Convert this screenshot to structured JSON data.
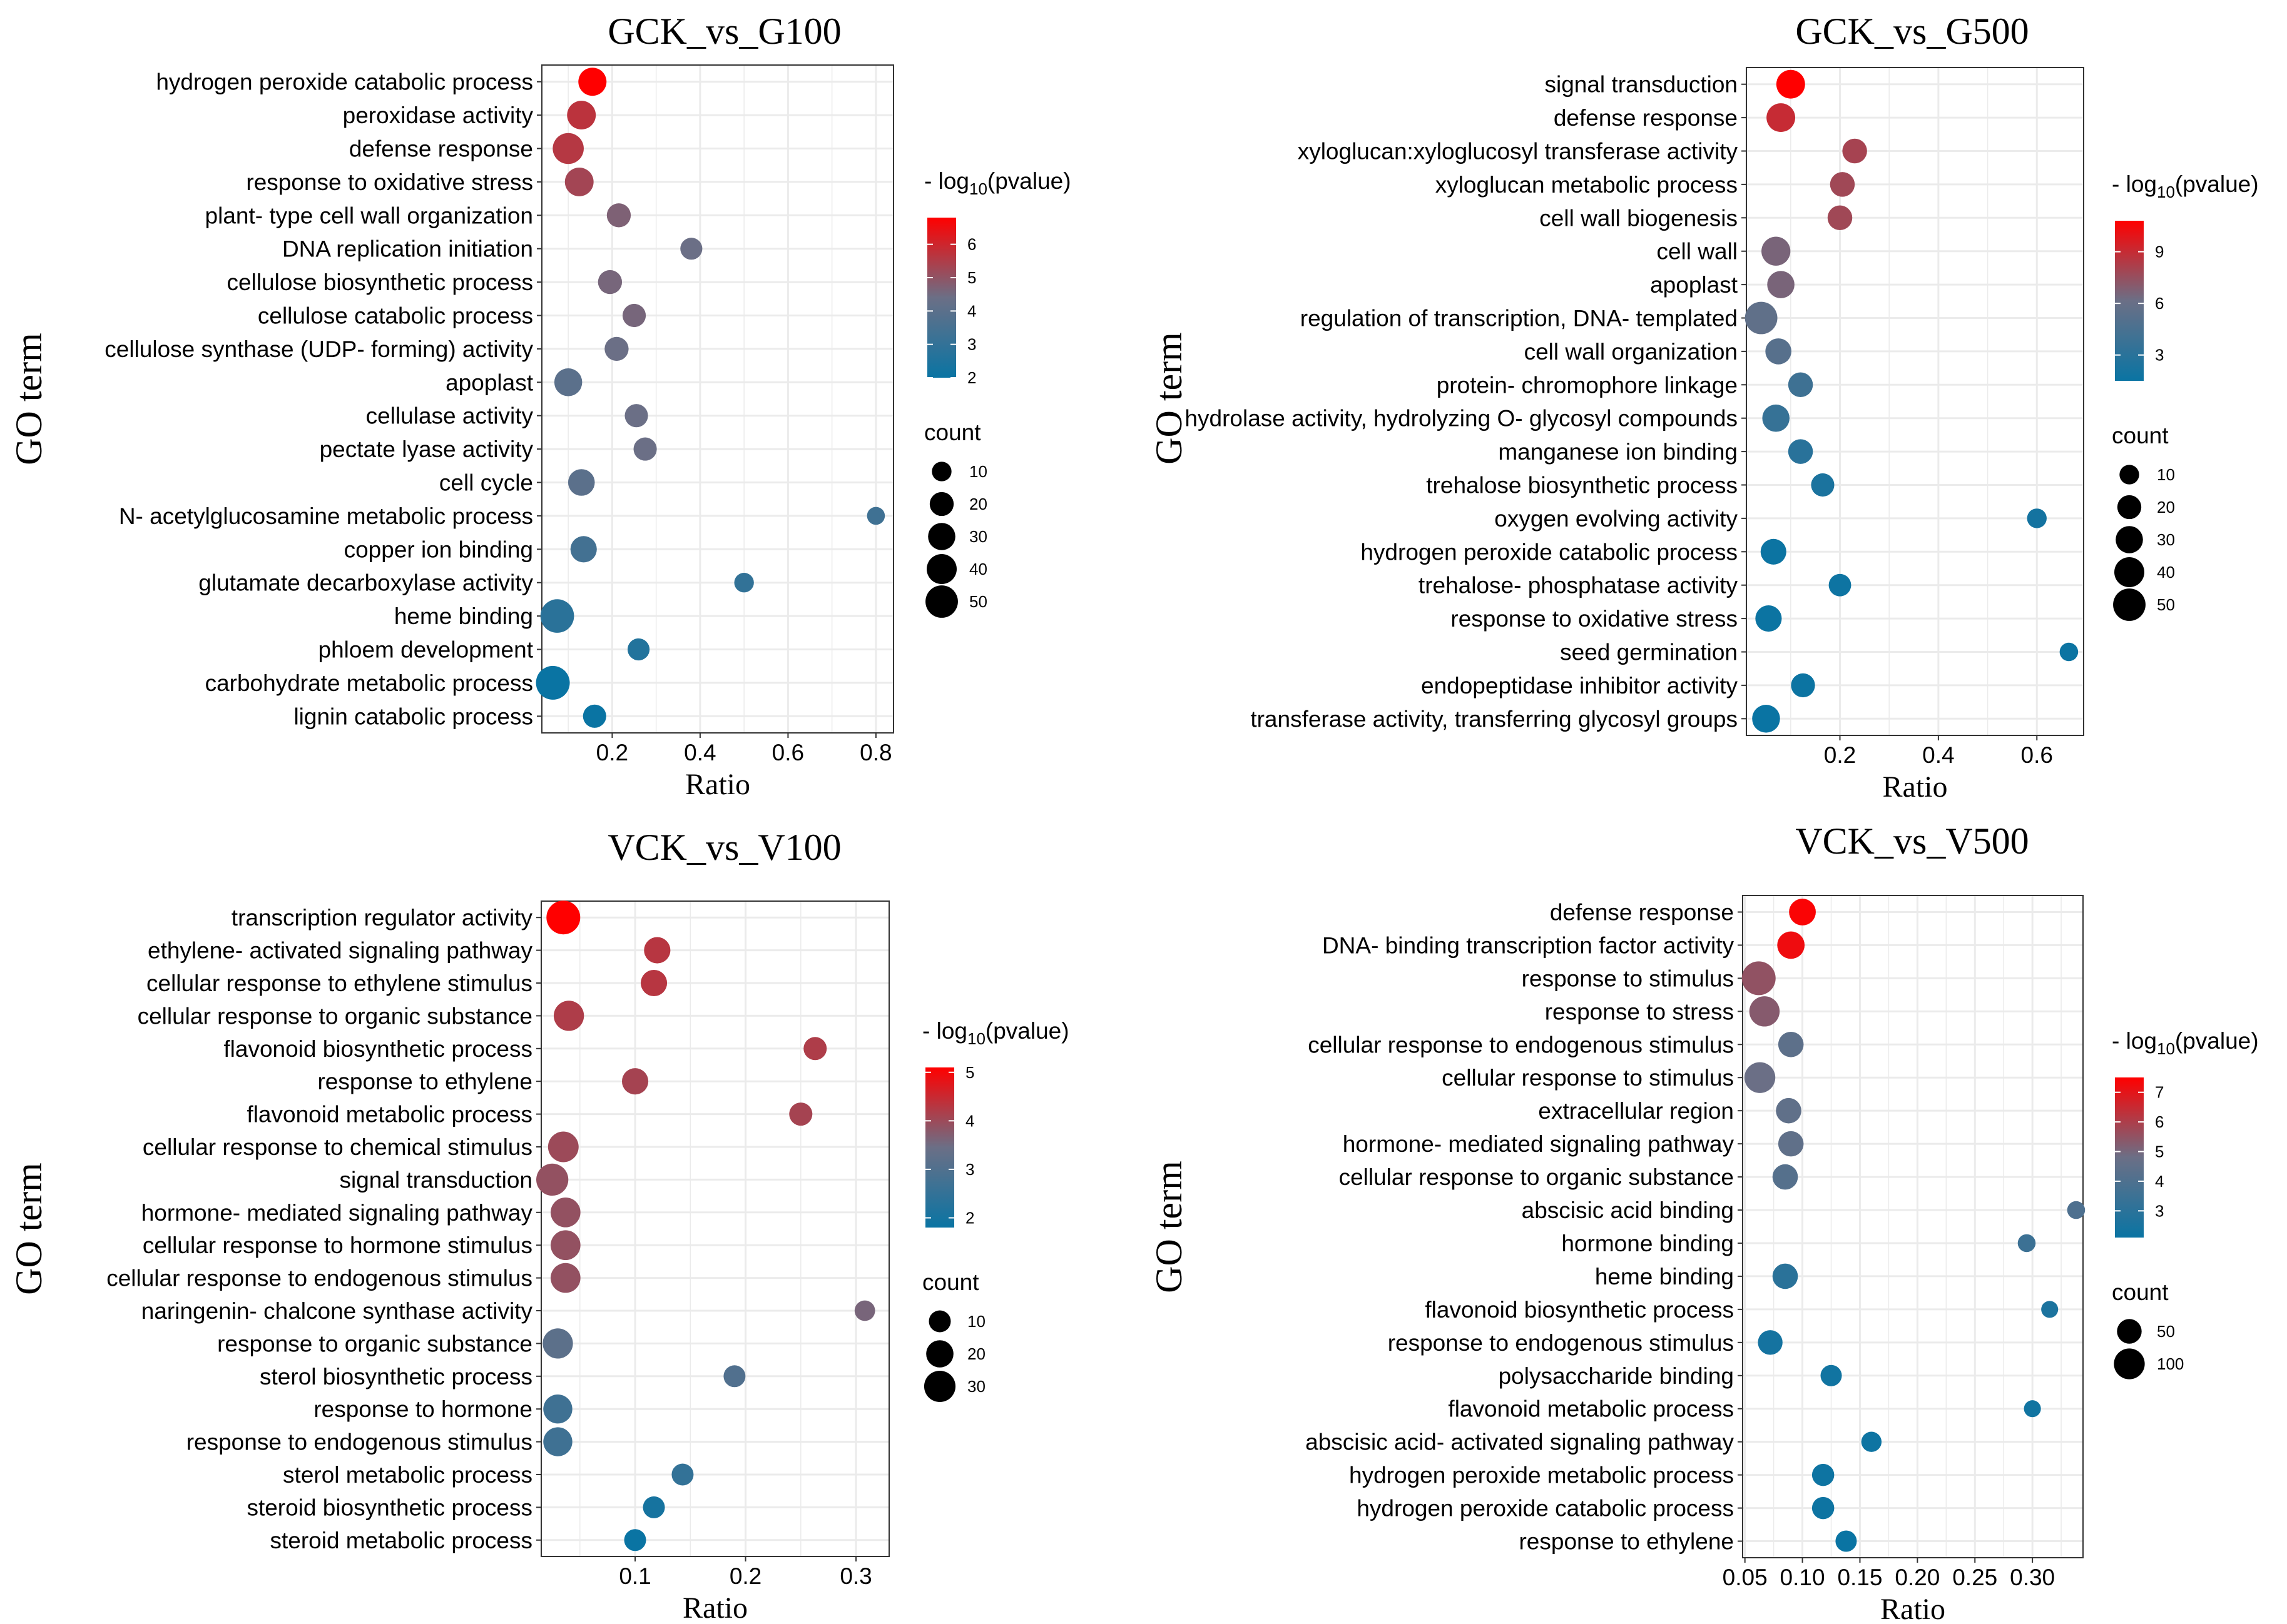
{
  "colors": {
    "high": "#ff0000",
    "low": "#0a74a3",
    "mid": "#6b6f86",
    "grid": "#ebebeb",
    "panel_border": "#333333",
    "text": "#000000"
  },
  "legend_labels": {
    "pvalue_prefix": "- log",
    "pvalue_sub": "10",
    "pvalue_suffix": "(pvalue)",
    "count": "count"
  },
  "chart_data": [
    {
      "type": "scatter",
      "title": "GCK_vs_G100",
      "xlabel": "Ratio",
      "ylabel": "GO term",
      "xlim": [
        0.04,
        0.84
      ],
      "xticks": [
        0.2,
        0.4,
        0.6,
        0.8
      ],
      "xtick_labels": [
        "0.2",
        "0.4",
        "0.6",
        "0.8"
      ],
      "color_range": [
        2,
        6.8
      ],
      "color_ticks": [
        2,
        3,
        4,
        5,
        6
      ],
      "count_range": [
        1,
        56
      ],
      "count_ticks": [
        10,
        20,
        30,
        40,
        50
      ],
      "points": [
        {
          "term": "hydrogen peroxide catabolic process",
          "ratio": 0.155,
          "logp": 6.8,
          "count": 33
        },
        {
          "term": "peroxidase activity",
          "ratio": 0.13,
          "logp": 5.7,
          "count": 35
        },
        {
          "term": "defense response",
          "ratio": 0.1,
          "logp": 5.6,
          "count": 44
        },
        {
          "term": "response to oxidative stress",
          "ratio": 0.125,
          "logp": 5.3,
          "count": 35
        },
        {
          "term": "plant- type cell wall organization",
          "ratio": 0.215,
          "logp": 4.7,
          "count": 20
        },
        {
          "term": "DNA replication initiation",
          "ratio": 0.38,
          "logp": 4.4,
          "count": 15
        },
        {
          "term": "cellulose biosynthetic process",
          "ratio": 0.195,
          "logp": 4.6,
          "count": 20
        },
        {
          "term": "cellulose catabolic process",
          "ratio": 0.25,
          "logp": 4.6,
          "count": 18
        },
        {
          "term": "cellulose synthase (UDP- forming) activity",
          "ratio": 0.21,
          "logp": 4.4,
          "count": 20
        },
        {
          "term": "apoplast",
          "ratio": 0.1,
          "logp": 4.0,
          "count": 32
        },
        {
          "term": "cellulase activity",
          "ratio": 0.255,
          "logp": 4.4,
          "count": 18
        },
        {
          "term": "pectate lyase activity",
          "ratio": 0.275,
          "logp": 4.4,
          "count": 18
        },
        {
          "term": "cell cycle",
          "ratio": 0.13,
          "logp": 4.0,
          "count": 28
        },
        {
          "term": "N- acetylglucosamine metabolic process",
          "ratio": 0.8,
          "logp": 3.3,
          "count": 7
        },
        {
          "term": "copper ion binding",
          "ratio": 0.135,
          "logp": 3.4,
          "count": 27
        },
        {
          "term": "glutamate decarboxylase activity",
          "ratio": 0.5,
          "logp": 3.0,
          "count": 10
        },
        {
          "term": "heme binding",
          "ratio": 0.075,
          "logp": 2.8,
          "count": 55
        },
        {
          "term": "phloem development",
          "ratio": 0.26,
          "logp": 2.6,
          "count": 15
        },
        {
          "term": "carbohydrate metabolic process",
          "ratio": 0.065,
          "logp": 2.0,
          "count": 56
        },
        {
          "term": "lignin catabolic process",
          "ratio": 0.16,
          "logp": 2.0,
          "count": 18
        }
      ]
    },
    {
      "type": "scatter",
      "title": "GCK_vs_G500",
      "xlabel": "Ratio",
      "ylabel": "GO term",
      "xlim": [
        0.01,
        0.695
      ],
      "xticks": [
        0.2,
        0.4,
        0.6
      ],
      "xtick_labels": [
        "0.2",
        "0.4",
        "0.6"
      ],
      "color_range": [
        1.5,
        10.8
      ],
      "color_ticks": [
        3,
        6,
        9
      ],
      "count_range": [
        1,
        56
      ],
      "count_ticks": [
        10,
        20,
        30,
        40,
        50
      ],
      "points": [
        {
          "term": "signal transduction",
          "ratio": 0.1,
          "logp": 10.8,
          "count": 35
        },
        {
          "term": "defense response",
          "ratio": 0.08,
          "logp": 9.0,
          "count": 35
        },
        {
          "term": "xyloglucan:xyloglucosyl transferase activity",
          "ratio": 0.23,
          "logp": 8.0,
          "count": 22
        },
        {
          "term": "xyloglucan metabolic process",
          "ratio": 0.205,
          "logp": 7.8,
          "count": 22
        },
        {
          "term": "cell wall biogenesis",
          "ratio": 0.2,
          "logp": 7.8,
          "count": 22
        },
        {
          "term": "cell wall",
          "ratio": 0.07,
          "logp": 6.6,
          "count": 36
        },
        {
          "term": "apoplast",
          "ratio": 0.08,
          "logp": 6.6,
          "count": 30
        },
        {
          "term": "regulation of transcription, DNA- templated",
          "ratio": 0.04,
          "logp": 5.6,
          "count": 50
        },
        {
          "term": "cell wall organization",
          "ratio": 0.075,
          "logp": 5.2,
          "count": 26
        },
        {
          "term": "protein- chromophore linkage",
          "ratio": 0.12,
          "logp": 4.0,
          "count": 22
        },
        {
          "term": "hydrolase activity, hydrolyzing O- glycosyl compounds",
          "ratio": 0.07,
          "logp": 3.6,
          "count": 30
        },
        {
          "term": "manganese ion binding",
          "ratio": 0.12,
          "logp": 3.0,
          "count": 22
        },
        {
          "term": "trehalose biosynthetic process",
          "ratio": 0.165,
          "logp": 2.3,
          "count": 18
        },
        {
          "term": "oxygen evolving activity",
          "ratio": 0.6,
          "logp": 2.0,
          "count": 10
        },
        {
          "term": "hydrogen peroxide catabolic process",
          "ratio": 0.065,
          "logp": 1.6,
          "count": 25
        },
        {
          "term": "trehalose- phosphatase activity",
          "ratio": 0.2,
          "logp": 1.7,
          "count": 16
        },
        {
          "term": "response to oxidative stress",
          "ratio": 0.055,
          "logp": 1.6,
          "count": 27
        },
        {
          "term": "seed germination",
          "ratio": 0.665,
          "logp": 1.6,
          "count": 8
        },
        {
          "term": "endopeptidase inhibitor activity",
          "ratio": 0.125,
          "logp": 1.6,
          "count": 20
        },
        {
          "term": "transferase activity, transferring glycosyl groups",
          "ratio": 0.05,
          "logp": 1.5,
          "count": 32
        }
      ]
    },
    {
      "type": "scatter",
      "title": "VCK_vs_V100",
      "xlabel": "Ratio",
      "ylabel": "GO term",
      "xlim": [
        0.015,
        0.33
      ],
      "xticks": [
        0.1,
        0.2,
        0.3
      ],
      "xtick_labels": [
        "0.1",
        "0.2",
        "0.3"
      ],
      "color_range": [
        1.8,
        5.1
      ],
      "color_ticks": [
        2,
        3,
        4,
        5
      ],
      "count_range": [
        1,
        37
      ],
      "count_ticks": [
        10,
        20,
        30
      ],
      "points": [
        {
          "term": "transcription regulator activity",
          "ratio": 0.035,
          "logp": 5.1,
          "count": 37
        },
        {
          "term": "ethylene- activated signaling pathway",
          "ratio": 0.12,
          "logp": 4.3,
          "count": 18
        },
        {
          "term": "cellular response to ethylene stimulus",
          "ratio": 0.117,
          "logp": 4.3,
          "count": 18
        },
        {
          "term": "cellular response to organic substance",
          "ratio": 0.04,
          "logp": 4.2,
          "count": 27
        },
        {
          "term": "flavonoid biosynthetic process",
          "ratio": 0.263,
          "logp": 4.2,
          "count": 12
        },
        {
          "term": "response to ethylene",
          "ratio": 0.1,
          "logp": 4.1,
          "count": 18
        },
        {
          "term": "flavonoid metabolic process",
          "ratio": 0.25,
          "logp": 4.1,
          "count": 12
        },
        {
          "term": "cellular response to chemical stimulus",
          "ratio": 0.035,
          "logp": 4.0,
          "count": 28
        },
        {
          "term": "signal transduction",
          "ratio": 0.025,
          "logp": 3.9,
          "count": 32
        },
        {
          "term": "hormone- mediated signaling pathway",
          "ratio": 0.037,
          "logp": 3.9,
          "count": 26
        },
        {
          "term": "cellular response to hormone stimulus",
          "ratio": 0.037,
          "logp": 3.9,
          "count": 26
        },
        {
          "term": "cellular response to endogenous stimulus",
          "ratio": 0.037,
          "logp": 3.9,
          "count": 26
        },
        {
          "term": "naringenin- chalcone synthase activity",
          "ratio": 0.308,
          "logp": 3.6,
          "count": 8
        },
        {
          "term": "response to organic substance",
          "ratio": 0.03,
          "logp": 3.2,
          "count": 27
        },
        {
          "term": "sterol biosynthetic process",
          "ratio": 0.19,
          "logp": 3.0,
          "count": 10
        },
        {
          "term": "response to hormone",
          "ratio": 0.03,
          "logp": 2.7,
          "count": 24
        },
        {
          "term": "response to endogenous stimulus",
          "ratio": 0.03,
          "logp": 2.7,
          "count": 24
        },
        {
          "term": "sterol metabolic process",
          "ratio": 0.143,
          "logp": 2.5,
          "count": 10
        },
        {
          "term": "steroid biosynthetic process",
          "ratio": 0.117,
          "logp": 2.0,
          "count": 10
        },
        {
          "term": "steroid metabolic process",
          "ratio": 0.1,
          "logp": 1.8,
          "count": 10
        }
      ]
    },
    {
      "type": "scatter",
      "title": "VCK_vs_V500",
      "xlabel": "Ratio",
      "ylabel": "GO term",
      "xlim": [
        0.048,
        0.344
      ],
      "xticks": [
        0.05,
        0.1,
        0.15,
        0.2,
        0.25,
        0.3
      ],
      "xtick_labels": [
        "0.05",
        "0.10",
        "0.15",
        "0.20",
        "0.25",
        "0.30"
      ],
      "color_range": [
        2.1,
        7.5
      ],
      "color_ticks": [
        3,
        4,
        5,
        6,
        7
      ],
      "count_range": [
        1,
        130
      ],
      "count_ticks": [
        50,
        100
      ],
      "points": [
        {
          "term": "defense response",
          "ratio": 0.1,
          "logp": 7.4,
          "count": 65
        },
        {
          "term": "DNA- binding transcription factor activity",
          "ratio": 0.09,
          "logp": 7.2,
          "count": 70
        },
        {
          "term": "response to stimulus",
          "ratio": 0.062,
          "logp": 5.5,
          "count": 130
        },
        {
          "term": "response to stress",
          "ratio": 0.067,
          "logp": 5.3,
          "count": 95
        },
        {
          "term": "cellular response to endogenous stimulus",
          "ratio": 0.09,
          "logp": 4.4,
          "count": 55
        },
        {
          "term": "cellular response to stimulus",
          "ratio": 0.063,
          "logp": 4.8,
          "count": 100
        },
        {
          "term": "extracellular region",
          "ratio": 0.088,
          "logp": 4.5,
          "count": 55
        },
        {
          "term": "hormone- mediated signaling pathway",
          "ratio": 0.09,
          "logp": 4.5,
          "count": 55
        },
        {
          "term": "cellular response to organic substance",
          "ratio": 0.085,
          "logp": 4.2,
          "count": 55
        },
        {
          "term": "abscisic acid binding",
          "ratio": 0.338,
          "logp": 4.0,
          "count": 15
        },
        {
          "term": "hormone binding",
          "ratio": 0.295,
          "logp": 3.5,
          "count": 15
        },
        {
          "term": "heme binding",
          "ratio": 0.085,
          "logp": 3.0,
          "count": 55
        },
        {
          "term": "flavonoid biosynthetic process",
          "ratio": 0.315,
          "logp": 2.6,
          "count": 12
        },
        {
          "term": "response to endogenous stimulus",
          "ratio": 0.072,
          "logp": 2.4,
          "count": 50
        },
        {
          "term": "polysaccharide binding",
          "ratio": 0.125,
          "logp": 2.3,
          "count": 30
        },
        {
          "term": "flavonoid metabolic process",
          "ratio": 0.3,
          "logp": 2.3,
          "count": 12
        },
        {
          "term": "abscisic acid- activated signaling pathway",
          "ratio": 0.16,
          "logp": 2.2,
          "count": 25
        },
        {
          "term": "hydrogen peroxide metabolic process",
          "ratio": 0.118,
          "logp": 2.2,
          "count": 35
        },
        {
          "term": "hydrogen peroxide catabolic process",
          "ratio": 0.118,
          "logp": 2.2,
          "count": 35
        },
        {
          "term": "response to ethylene",
          "ratio": 0.138,
          "logp": 2.1,
          "count": 30
        }
      ]
    }
  ]
}
